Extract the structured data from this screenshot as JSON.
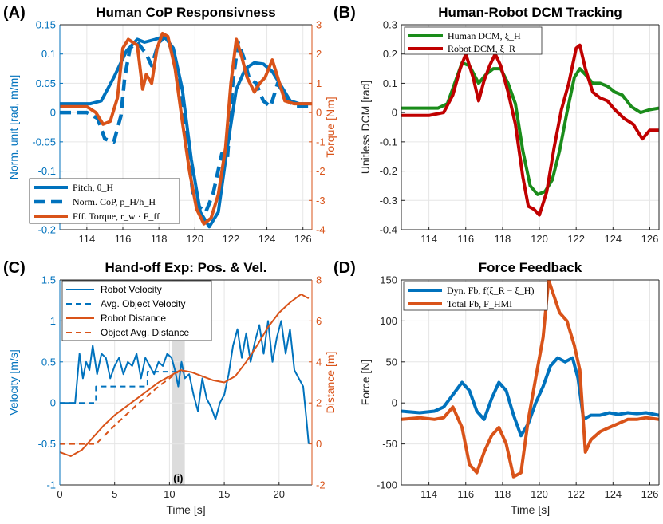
{
  "colors": {
    "blue": "#0072BD",
    "orange": "#D95319",
    "green": "#1A8C1A",
    "red": "#C00000",
    "grid": "#e6e6e6",
    "shade": "#dcdcdc"
  },
  "chart_data": [
    {
      "panel": "(A)",
      "type": "line",
      "title": "Human CoP Responsivness",
      "ylabel": "Norm. unit [rad, m/m]",
      "ylabel_right": "Torque [Nm]",
      "xlim": [
        112.5,
        126.5
      ],
      "ylim": [
        -0.2,
        0.15
      ],
      "ylim_right": [
        -4,
        3
      ],
      "xticks": [
        "114",
        "116",
        "118",
        "120",
        "122",
        "124",
        "126"
      ],
      "yticks": [
        "0.15",
        "0.1",
        "0.05",
        "0",
        "-0.05",
        "-0.1",
        "-0.15",
        "-0.2"
      ],
      "yticks_right": [
        "3",
        "2",
        "1",
        "0",
        "-1",
        "-2",
        "-3",
        "-4"
      ],
      "legend": [
        "Pitch, θ_H",
        "Norm. CoP, p_H/h_H",
        "Fff. Torque, r_w · F_ff"
      ],
      "series": [
        {
          "name": "Pitch, θ_H",
          "axis": "left",
          "style": "solid",
          "x": [
            112.5,
            114.2,
            114.8,
            115.5,
            116.2,
            116.8,
            117.2,
            117.8,
            118.3,
            118.8,
            119.3,
            119.8,
            120.3,
            120.8,
            121.3,
            121.8,
            122.3,
            122.8,
            123.3,
            123.8,
            124.3,
            124.8,
            125.3,
            125.8,
            126.5
          ],
          "y": [
            0.015,
            0.015,
            0.02,
            0.06,
            0.105,
            0.125,
            0.12,
            0.125,
            0.13,
            0.11,
            0.04,
            -0.08,
            -0.17,
            -0.195,
            -0.17,
            -0.06,
            0.04,
            0.075,
            0.085,
            0.083,
            0.07,
            0.045,
            0.02,
            0.015,
            0.015
          ]
        },
        {
          "name": "Norm. CoP, p_H/h_H",
          "axis": "left",
          "style": "dashed",
          "x": [
            112.5,
            114,
            114.6,
            115,
            115.5,
            115.9,
            116.1,
            116.4,
            116.8,
            117.3,
            117.6,
            118,
            118.4,
            118.8,
            119.2,
            119.6,
            119.9,
            120.2,
            120.6,
            121,
            121.5,
            121.8,
            122.1,
            122.4,
            122.7,
            123,
            123.4,
            123.8,
            124.2,
            124.6,
            125,
            125.5,
            126,
            126.5
          ],
          "y": [
            0,
            0,
            -0.01,
            -0.045,
            -0.05,
            -0.005,
            0.06,
            0.11,
            0.12,
            0.1,
            0.08,
            0.12,
            0.13,
            0.1,
            0.03,
            -0.07,
            -0.14,
            -0.16,
            -0.17,
            -0.14,
            -0.07,
            -0.08,
            0.05,
            0.12,
            0.095,
            0.06,
            0.05,
            0.02,
            0.01,
            0.05,
            0.03,
            0.01,
            0.01,
            0.01
          ]
        },
        {
          "name": "Fff. Torque, r_w · F_ff",
          "axis": "right",
          "style": "solid",
          "x": [
            112.5,
            114,
            114.5,
            114.9,
            115.3,
            115.7,
            116,
            116.3,
            116.8,
            117.1,
            117.3,
            117.6,
            117.9,
            118.2,
            118.5,
            118.9,
            119.3,
            119.7,
            120.1,
            120.5,
            120.9,
            121.3,
            121.7,
            122,
            122.3,
            122.6,
            122.9,
            123.3,
            123.6,
            123.9,
            124.3,
            124.7,
            125,
            125.5,
            126,
            126.5
          ],
          "y": [
            0.2,
            0.2,
            0,
            -0.4,
            -0.3,
            0.5,
            2.2,
            2.5,
            2.3,
            0.8,
            1.3,
            1.0,
            2.2,
            2.7,
            2.6,
            1.5,
            -0.3,
            -2.0,
            -3.3,
            -3.8,
            -3.6,
            -2.8,
            -1.2,
            1.0,
            2.5,
            1.9,
            1.2,
            0.7,
            1.0,
            1.2,
            1.8,
            1.0,
            0.4,
            0.3,
            0.3,
            0.3
          ]
        }
      ]
    },
    {
      "panel": "(B)",
      "type": "line",
      "title": "Human-Robot DCM Tracking",
      "ylabel": "Unitless DCM [rad]",
      "xlim": [
        112.5,
        126.5
      ],
      "ylim": [
        -0.4,
        0.3
      ],
      "xticks": [
        "114",
        "116",
        "118",
        "120",
        "122",
        "124",
        "126"
      ],
      "yticks": [
        "0.3",
        "0.2",
        "0.1",
        "0",
        "-0.1",
        "-0.2",
        "-0.3",
        "-0.4"
      ],
      "legend": [
        "Human DCM, ξ_H",
        "Robot DCM, ξ_R"
      ],
      "series": [
        {
          "name": "Human DCM, ξ_H",
          "x": [
            112.5,
            113.5,
            114.5,
            115,
            115.4,
            115.8,
            116.2,
            116.7,
            117.1,
            117.5,
            117.9,
            118.3,
            118.7,
            119.1,
            119.5,
            119.9,
            120.3,
            120.7,
            121.1,
            121.5,
            121.9,
            122.2,
            122.5,
            122.9,
            123.3,
            123.7,
            124.1,
            124.5,
            125,
            125.5,
            126,
            126.5
          ],
          "y": [
            0.015,
            0.015,
            0.015,
            0.03,
            0.1,
            0.17,
            0.16,
            0.1,
            0.13,
            0.15,
            0.15,
            0.1,
            0.03,
            -0.13,
            -0.25,
            -0.28,
            -0.27,
            -0.23,
            -0.13,
            0.0,
            0.12,
            0.15,
            0.13,
            0.1,
            0.1,
            0.09,
            0.07,
            0.06,
            0.02,
            0.0,
            0.01,
            0.015
          ]
        },
        {
          "name": "Robot DCM, ξ_R",
          "x": [
            112.5,
            114,
            114.8,
            115.3,
            115.7,
            116,
            116.4,
            116.7,
            117,
            117.3,
            117.6,
            117.9,
            118.3,
            118.7,
            119.1,
            119.4,
            119.7,
            120,
            120.4,
            120.8,
            121.2,
            121.6,
            122,
            122.2,
            122.5,
            122.9,
            123.3,
            123.7,
            124.1,
            124.6,
            125.1,
            125.6,
            126,
            126.5
          ],
          "y": [
            -0.01,
            -0.01,
            0.0,
            0.06,
            0.15,
            0.2,
            0.12,
            0.04,
            0.11,
            0.16,
            0.2,
            0.16,
            0.07,
            -0.04,
            -0.22,
            -0.32,
            -0.33,
            -0.35,
            -0.27,
            -0.12,
            0.01,
            0.1,
            0.22,
            0.23,
            0.15,
            0.07,
            0.05,
            0.04,
            0.01,
            -0.02,
            -0.04,
            -0.09,
            -0.06,
            -0.06
          ]
        }
      ]
    },
    {
      "panel": "(C)",
      "type": "line",
      "title": "Hand-off Exp: Pos. & Vel.",
      "xlabel": "Time [s]",
      "ylabel": "Velocity [m/s]",
      "ylabel_right": "Distance [m]",
      "xlim": [
        0,
        23
      ],
      "ylim": [
        -1,
        1.5
      ],
      "ylim_right": [
        -2,
        8
      ],
      "xticks": [
        "0",
        "5",
        "10",
        "15",
        "20"
      ],
      "yticks": [
        "1.5",
        "1",
        "0.5",
        "0",
        "-0.5",
        "-1"
      ],
      "yticks_right": [
        "8",
        "6",
        "4",
        "2",
        "0",
        "-2"
      ],
      "annotation": "(i)",
      "shade_x": [
        10.2,
        11.4
      ],
      "legend": [
        "Robot Velocity",
        "Avg. Object Velocity",
        "Robot Distance",
        "Object Avg. Distance"
      ],
      "series": [
        {
          "name": "Robot Velocity",
          "axis": "left",
          "style": "solid",
          "color": "blue",
          "x": [
            0,
            1.4,
            1.8,
            2.1,
            2.4,
            2.7,
            3.0,
            3.4,
            3.8,
            4.2,
            4.6,
            5.0,
            5.4,
            5.8,
            6.2,
            6.6,
            7.0,
            7.4,
            7.8,
            8.2,
            8.6,
            9.0,
            9.4,
            9.8,
            10.2,
            10.5,
            10.8,
            11.1,
            11.4,
            11.8,
            12.2,
            12.6,
            13.0,
            13.4,
            13.8,
            14.2,
            14.6,
            15.0,
            15.4,
            15.8,
            16.2,
            16.6,
            17.0,
            17.4,
            17.8,
            18.2,
            18.6,
            19.0,
            19.4,
            19.8,
            20.2,
            20.6,
            21.0,
            21.4,
            21.8,
            22.2,
            22.5,
            22.7
          ],
          "y": [
            0,
            0,
            0.6,
            0.3,
            0.5,
            0.4,
            0.7,
            0.35,
            0.6,
            0.55,
            0.3,
            0.45,
            0.55,
            0.35,
            0.5,
            0.45,
            0.6,
            0.3,
            0.55,
            0.45,
            0.35,
            0.5,
            0.45,
            0.6,
            0.55,
            0.4,
            0.2,
            0.5,
            0.3,
            0.35,
            0.1,
            -0.1,
            0.3,
            0.05,
            -0.05,
            -0.2,
            0.0,
            0.1,
            0.35,
            0.7,
            0.9,
            0.55,
            0.85,
            0.5,
            0.75,
            0.95,
            0.6,
            1.0,
            0.5,
            0.8,
            1.0,
            0.6,
            0.9,
            0.4,
            0.3,
            0.2,
            -0.2,
            -0.5
          ]
        },
        {
          "name": "Avg. Object Velocity",
          "axis": "left",
          "style": "dashed",
          "color": "blue",
          "x": [
            0,
            3.3,
            3.3,
            8.0,
            8.0,
            11.4
          ],
          "y": [
            0,
            0,
            0.2,
            0.2,
            0.38,
            0.38
          ]
        },
        {
          "name": "Robot Distance",
          "axis": "right",
          "style": "solid",
          "color": "orange",
          "x": [
            0,
            1,
            2,
            3,
            4,
            5,
            6,
            7,
            8,
            9,
            10,
            11,
            12,
            13,
            14,
            15,
            16,
            17,
            18,
            19,
            20,
            21,
            22,
            22.7
          ],
          "y": [
            -0.4,
            -0.6,
            -0.3,
            0.3,
            0.9,
            1.4,
            1.8,
            2.2,
            2.6,
            3.0,
            3.3,
            3.6,
            3.5,
            3.3,
            3.1,
            3.0,
            3.3,
            4.0,
            4.8,
            5.7,
            6.4,
            6.9,
            7.3,
            7.1
          ]
        },
        {
          "name": "Object Avg. Distance",
          "axis": "right",
          "style": "dashed",
          "color": "orange",
          "x": [
            0,
            3.3,
            5,
            7,
            9,
            11,
            11.4
          ],
          "y": [
            0,
            0,
            0.9,
            1.9,
            2.8,
            3.6,
            3.7
          ]
        }
      ]
    },
    {
      "panel": "(D)",
      "type": "line",
      "title": "Force Feedback",
      "xlabel": "Time [s]",
      "ylabel": "Force [N]",
      "xlim": [
        112.5,
        126.5
      ],
      "ylim": [
        -100,
        150
      ],
      "xticks": [
        "114",
        "116",
        "118",
        "120",
        "122",
        "124",
        "126"
      ],
      "yticks": [
        "150",
        "100",
        "50",
        "0",
        "-50",
        "-100"
      ],
      "legend": [
        "Dyn. Fb, f(ξ_R − ξ_H)",
        "Total Fb, F_HMI"
      ],
      "series": [
        {
          "name": "Dyn. Fb, f(ξ_R − ξ_H)",
          "color": "blue",
          "x": [
            112.5,
            113.5,
            114.3,
            114.8,
            115.3,
            115.8,
            116.2,
            116.6,
            117,
            117.4,
            117.8,
            118.2,
            118.6,
            119,
            119.4,
            119.8,
            120.2,
            120.6,
            121,
            121.4,
            121.8,
            122.1,
            122.4,
            122.8,
            123.3,
            123.8,
            124.3,
            124.8,
            125.3,
            125.8,
            126.5
          ],
          "y": [
            -10,
            -12,
            -10,
            -5,
            10,
            25,
            15,
            -10,
            -20,
            5,
            25,
            15,
            -15,
            -40,
            -25,
            0,
            20,
            45,
            55,
            50,
            55,
            30,
            -20,
            -15,
            -15,
            -12,
            -14,
            -12,
            -13,
            -12,
            -15
          ]
        },
        {
          "name": "Total Fb, F_HMI",
          "color": "orange",
          "x": [
            112.5,
            113.5,
            114.3,
            114.8,
            115.3,
            115.8,
            116.2,
            116.6,
            117,
            117.4,
            117.8,
            118.2,
            118.6,
            119,
            119.4,
            119.8,
            120.2,
            120.5,
            120.8,
            121.1,
            121.5,
            121.9,
            122.2,
            122.5,
            122.8,
            123.3,
            123.8,
            124.3,
            124.8,
            125.3,
            125.8,
            126.5
          ],
          "y": [
            -20,
            -18,
            -20,
            -18,
            -5,
            -30,
            -75,
            -85,
            -60,
            -40,
            -30,
            -50,
            -90,
            -85,
            -20,
            30,
            80,
            150,
            130,
            110,
            100,
            70,
            40,
            -60,
            -45,
            -35,
            -30,
            -25,
            -20,
            -20,
            -18,
            -20
          ]
        }
      ]
    }
  ]
}
